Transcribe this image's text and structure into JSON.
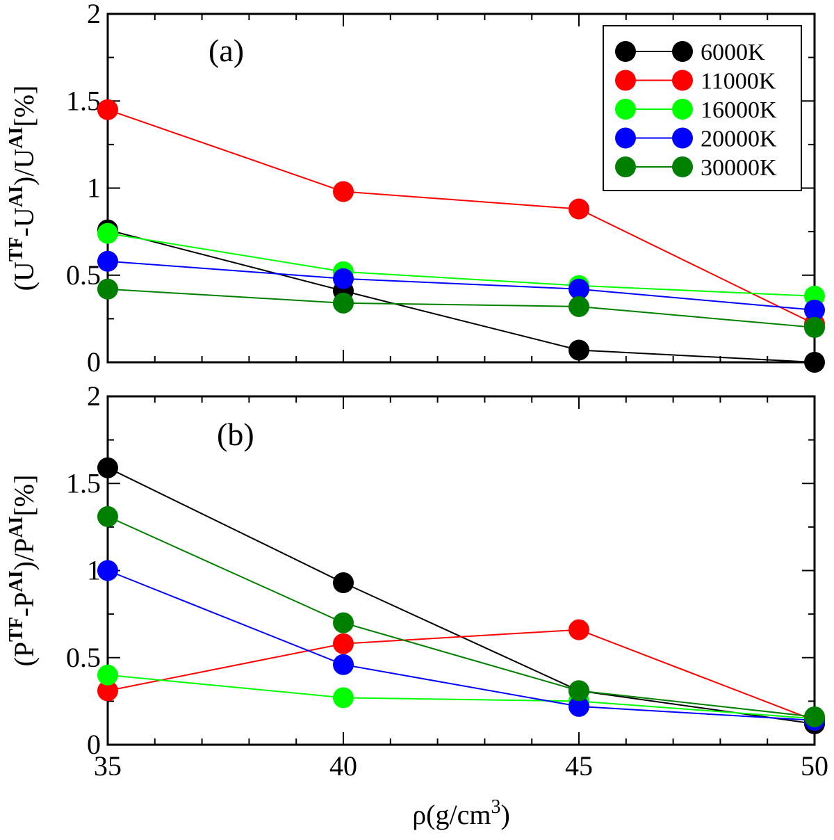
{
  "chart_data": [
    {
      "type": "line",
      "panel_label": "(a)",
      "ylabel_parts": [
        "(U",
        "TF",
        "-U",
        "AI",
        ")/U",
        "AI",
        "[%]"
      ],
      "xlim": [
        35,
        50
      ],
      "ylim": [
        0,
        2
      ],
      "x": [
        35,
        40,
        45,
        50
      ],
      "yticks": [
        "0",
        "0.5",
        "1",
        "1.5",
        "2"
      ],
      "legend_position": "top-right",
      "series": [
        {
          "name": "6000K",
          "color": "#000000",
          "values": [
            0.76,
            0.41,
            0.07,
            0.0
          ]
        },
        {
          "name": "11000K",
          "color": "#ff0000",
          "values": [
            1.45,
            0.98,
            0.88,
            0.22
          ]
        },
        {
          "name": "16000K",
          "color": "#00ff00",
          "values": [
            0.74,
            0.52,
            0.44,
            0.38
          ]
        },
        {
          "name": "20000K",
          "color": "#0000ff",
          "values": [
            0.58,
            0.48,
            0.42,
            0.3
          ]
        },
        {
          "name": "30000K",
          "color": "#008000",
          "values": [
            0.42,
            0.34,
            0.32,
            0.2
          ]
        }
      ]
    },
    {
      "type": "line",
      "panel_label": "(b)",
      "ylabel_parts": [
        "(P",
        "TF",
        "-P",
        "AI",
        ")/P",
        "AI",
        "[%]"
      ],
      "xlim": [
        35,
        50
      ],
      "ylim": [
        0,
        2
      ],
      "x": [
        35,
        40,
        45,
        50
      ],
      "xticks": [
        "35",
        "40",
        "45",
        "50"
      ],
      "yticks": [
        "0",
        "0.5",
        "1",
        "1.5",
        "2"
      ],
      "xlabel_parts": [
        "ρ(g/cm",
        "3",
        ")"
      ],
      "series": [
        {
          "name": "6000K",
          "color": "#000000",
          "values": [
            1.59,
            0.93,
            0.31,
            0.12
          ]
        },
        {
          "name": "11000K",
          "color": "#ff0000",
          "values": [
            0.31,
            0.58,
            0.66,
            0.14
          ]
        },
        {
          "name": "16000K",
          "color": "#00ff00",
          "values": [
            0.4,
            0.27,
            0.25,
            0.15
          ]
        },
        {
          "name": "20000K",
          "color": "#0000ff",
          "values": [
            1.0,
            0.46,
            0.22,
            0.14
          ]
        },
        {
          "name": "30000K",
          "color": "#008000",
          "values": [
            1.31,
            0.7,
            0.31,
            0.16
          ]
        }
      ]
    }
  ]
}
